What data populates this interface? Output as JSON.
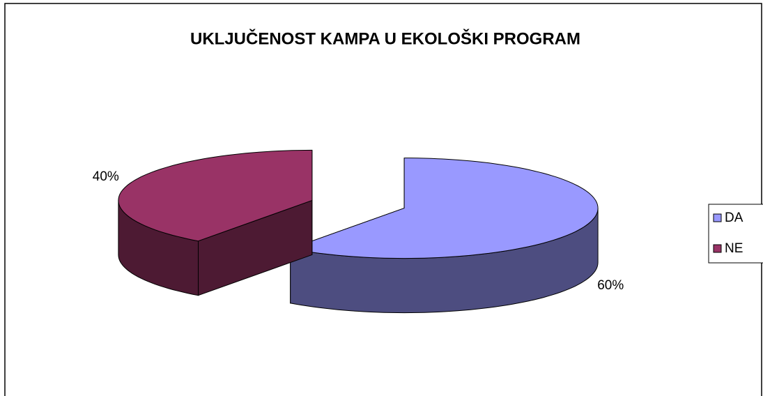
{
  "chart_data": {
    "type": "pie",
    "three_d": true,
    "title": "UKLJUČENOST KAMPA U EKOLOŠKI PROGRAM",
    "categories": [
      "DA",
      "NE"
    ],
    "values": [
      60,
      40
    ],
    "value_labels": [
      "60%",
      "40%"
    ],
    "colors": [
      "#9999ff",
      "#993366"
    ],
    "legend": "right"
  }
}
